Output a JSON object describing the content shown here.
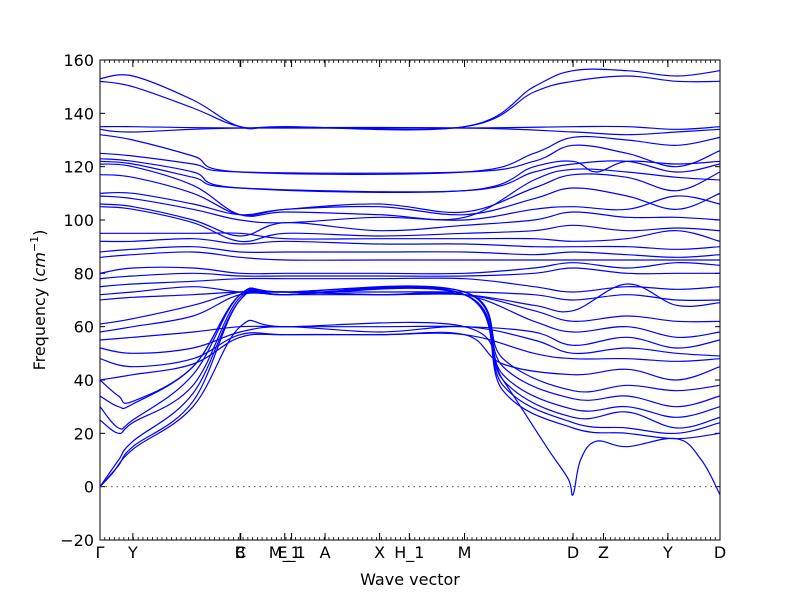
{
  "chart_data": {
    "type": "line",
    "title": "",
    "xlabel": "Wave vector",
    "ylabel": "Frequency",
    "ylabel_unit": "cm",
    "ylabel_unit_exp": "−1",
    "ylim": [
      -20,
      160
    ],
    "yticks": [
      -20,
      0,
      20,
      40,
      60,
      80,
      100,
      120,
      140,
      160
    ],
    "ytick_labels": [
      "−20",
      "0",
      "20",
      "40",
      "60",
      "80",
      "100",
      "120",
      "140",
      "160"
    ],
    "xlim": [
      0,
      1
    ],
    "high_symmetry_points": [
      {
        "label": "Γ",
        "x": 0.0
      },
      {
        "label": "Y",
        "x": 0.053
      },
      {
        "label": "B",
        "x": 0.226
      },
      {
        "label": "C",
        "x": 0.227
      },
      {
        "label": "M_1",
        "x": 0.298
      },
      {
        "label": "E_1",
        "x": 0.309
      },
      {
        "label": "A",
        "x": 0.363
      },
      {
        "label": "X",
        "x": 0.451
      },
      {
        "label": "H_1",
        "x": 0.499
      },
      {
        "label": "M",
        "x": 0.588
      },
      {
        "label": "D",
        "x": 0.763
      },
      {
        "label": "Z",
        "x": 0.812
      },
      {
        "label": "Y",
        "x": 0.916
      },
      {
        "label": "D",
        "x": 1.0
      }
    ],
    "bands": [
      {
        "x": [
          0,
          0.053,
          0.15,
          0.226,
          0.3,
          0.588,
          0.7,
          0.763,
          0.85,
          0.93,
          1.0
        ],
        "y": [
          153,
          154,
          145,
          135,
          135,
          135,
          150,
          156,
          156,
          154,
          156
        ]
      },
      {
        "x": [
          0,
          0.053,
          0.15,
          0.226,
          0.3,
          0.588,
          0.7,
          0.763,
          0.85,
          0.93,
          1.0
        ],
        "y": [
          152,
          150,
          142,
          135,
          135,
          135,
          148,
          152,
          154,
          152,
          152
        ]
      },
      {
        "x": [
          0,
          0.053,
          0.226,
          0.588,
          0.763,
          0.85,
          0.93,
          1.0
        ],
        "y": [
          135,
          135,
          134.5,
          134.5,
          135,
          135,
          134,
          135
        ]
      },
      {
        "x": [
          0,
          0.053,
          0.226,
          0.588,
          0.763,
          0.85,
          0.93,
          1.0
        ],
        "y": [
          134,
          133,
          134.5,
          134.5,
          133,
          132,
          133,
          134
        ]
      },
      {
        "x": [
          0,
          0.053,
          0.15,
          0.226,
          0.588,
          0.7,
          0.763,
          0.85,
          0.93,
          1.0
        ],
        "y": [
          132,
          130,
          124,
          118,
          118,
          125,
          131,
          130,
          128,
          131
        ]
      },
      {
        "x": [
          0,
          0.053,
          0.15,
          0.226,
          0.588,
          0.7,
          0.763,
          0.85,
          0.93,
          1.0
        ],
        "y": [
          125,
          124,
          121,
          118,
          118,
          122,
          128,
          125,
          120,
          126
        ]
      },
      {
        "x": [
          0,
          0.053,
          0.15,
          0.226,
          0.588,
          0.7,
          0.763,
          0.8,
          0.85,
          0.93,
          1.0
        ],
        "y": [
          123,
          122,
          118,
          112,
          111,
          120,
          122,
          118,
          122,
          121,
          122
        ]
      },
      {
        "x": [
          0,
          0.053,
          0.15,
          0.226,
          0.588,
          0.7,
          0.763,
          0.85,
          0.93,
          1.0
        ],
        "y": [
          122,
          121,
          116,
          112,
          111,
          118,
          121,
          122,
          118,
          121
        ]
      },
      {
        "x": [
          0,
          0.053,
          0.15,
          0.226,
          0.3,
          0.45,
          0.588,
          0.7,
          0.763,
          0.85,
          0.93,
          1.0
        ],
        "y": [
          121,
          120,
          113,
          102,
          103,
          102,
          101,
          115,
          119,
          118,
          116,
          115
        ]
      },
      {
        "x": [
          0,
          0.053,
          0.15,
          0.226,
          0.3,
          0.45,
          0.588,
          0.7,
          0.763,
          0.85,
          0.93,
          1.0
        ],
        "y": [
          117,
          116,
          110,
          102,
          104,
          106,
          103,
          112,
          117,
          116,
          111,
          118
        ]
      },
      {
        "x": [
          0,
          0.053,
          0.15,
          0.226,
          0.3,
          0.45,
          0.588,
          0.7,
          0.763,
          0.85,
          0.93,
          1.0
        ],
        "y": [
          110,
          110,
          106,
          102,
          104,
          105,
          102,
          108,
          112,
          109,
          104,
          110
        ]
      },
      {
        "x": [
          0,
          0.053,
          0.15,
          0.226,
          0.3,
          0.45,
          0.588,
          0.7,
          0.763,
          0.85,
          0.93,
          1.0
        ],
        "y": [
          109,
          108,
          104,
          100,
          99,
          101,
          100,
          104,
          105,
          104,
          109,
          106
        ]
      },
      {
        "x": [
          0,
          0.053,
          0.15,
          0.226,
          0.3,
          0.45,
          0.588,
          0.7,
          0.763,
          0.85,
          0.93,
          1.0
        ],
        "y": [
          106,
          105,
          100,
          94,
          99,
          96,
          98,
          100,
          103,
          101,
          101,
          100
        ]
      },
      {
        "x": [
          0,
          0.053,
          0.15,
          0.226,
          0.3,
          0.45,
          0.588,
          0.7,
          0.763,
          0.85,
          0.93,
          1.0
        ],
        "y": [
          105,
          104,
          99,
          92,
          95,
          94,
          95,
          96,
          98,
          96,
          97,
          96
        ]
      },
      {
        "x": [
          0,
          0.053,
          0.15,
          0.226,
          0.3,
          0.45,
          0.588,
          0.7,
          0.763,
          0.85,
          0.93,
          1.0
        ],
        "y": [
          95,
          95,
          95,
          95,
          93,
          93,
          93,
          93,
          92,
          93,
          96,
          92
        ]
      },
      {
        "x": [
          0,
          0.053,
          0.15,
          0.226,
          0.3,
          0.45,
          0.588,
          0.7,
          0.763,
          0.85,
          0.93,
          1.0
        ],
        "y": [
          92,
          92,
          93,
          91,
          92,
          91,
          91,
          90,
          90,
          90,
          89,
          90
        ]
      },
      {
        "x": [
          0,
          0.053,
          0.15,
          0.226,
          0.3,
          0.45,
          0.588,
          0.7,
          0.763,
          0.85,
          0.93,
          1.0
        ],
        "y": [
          88,
          89,
          90,
          88,
          88,
          88,
          88,
          87,
          88,
          87,
          86,
          87
        ]
      },
      {
        "x": [
          0,
          0.053,
          0.15,
          0.226,
          0.3,
          0.45,
          0.588,
          0.7,
          0.763,
          0.85,
          0.93,
          1.0
        ],
        "y": [
          86,
          87,
          88,
          86,
          85,
          85,
          85,
          85,
          85,
          85,
          85,
          85
        ]
      },
      {
        "x": [
          0,
          0.053,
          0.15,
          0.226,
          0.3,
          0.45,
          0.588,
          0.7,
          0.763,
          0.85,
          0.93,
          1.0
        ],
        "y": [
          80,
          82,
          82,
          80,
          80,
          80,
          80,
          82,
          84,
          82,
          84,
          83
        ]
      },
      {
        "x": [
          0,
          0.053,
          0.15,
          0.226,
          0.3,
          0.45,
          0.588,
          0.7,
          0.763,
          0.85,
          0.93,
          1.0
        ],
        "y": [
          78,
          79,
          80,
          79,
          79,
          79,
          79,
          80,
          82,
          80,
          80,
          80
        ]
      },
      {
        "x": [
          0,
          0.053,
          0.15,
          0.226,
          0.3,
          0.45,
          0.588,
          0.7,
          0.763,
          0.85,
          0.93,
          1.0
        ],
        "y": [
          75,
          76,
          77,
          78,
          78,
          78,
          78,
          75,
          73,
          75,
          74,
          75
        ]
      },
      {
        "x": [
          0,
          0.053,
          0.15,
          0.226,
          0.3,
          0.45,
          0.588,
          0.7,
          0.763,
          0.85,
          0.93,
          1.0
        ],
        "y": [
          72,
          73,
          75,
          73,
          73,
          73,
          73,
          72,
          70,
          72,
          70,
          70
        ]
      },
      {
        "x": [
          0,
          0.053,
          0.15,
          0.226,
          0.3,
          0.45,
          0.588,
          0.7,
          0.763,
          0.85,
          0.93,
          1.0
        ],
        "y": [
          70,
          71,
          72,
          73,
          73,
          72,
          72,
          68,
          66,
          76,
          68,
          69
        ]
      },
      {
        "x": [
          0,
          0.053,
          0.15,
          0.226,
          0.3,
          0.45,
          0.588,
          0.7,
          0.763,
          0.85,
          0.93,
          1.0
        ],
        "y": [
          61,
          63,
          68,
          73,
          73,
          72,
          72,
          66,
          62,
          64,
          62,
          62
        ]
      },
      {
        "x": [
          0,
          0.053,
          0.15,
          0.226,
          0.3,
          0.45,
          0.588,
          0.7,
          0.763,
          0.85,
          0.93,
          1.0
        ],
        "y": [
          58,
          60,
          64,
          72,
          72,
          72,
          72,
          62,
          58,
          60,
          56,
          58
        ]
      },
      {
        "x": [
          0,
          0.053,
          0.15,
          0.226,
          0.3,
          0.45,
          0.588,
          0.7,
          0.763,
          0.85,
          0.93,
          1.0
        ],
        "y": [
          55,
          56,
          58,
          60,
          60,
          60,
          60,
          58,
          53,
          56,
          52,
          55
        ]
      },
      {
        "x": [
          0,
          0.053,
          0.15,
          0.226,
          0.3,
          0.45,
          0.588,
          0.7,
          0.763,
          0.85,
          0.93,
          1.0
        ],
        "y": [
          52,
          50,
          52,
          58,
          60,
          58,
          60,
          55,
          50,
          52,
          50,
          49
        ]
      },
      {
        "x": [
          0,
          0.053,
          0.15,
          0.226,
          0.3,
          0.45,
          0.588,
          0.7,
          0.763,
          0.85,
          0.93,
          1.0
        ],
        "y": [
          48,
          45,
          48,
          57,
          57,
          57,
          57,
          50,
          48,
          48,
          47,
          48
        ]
      },
      {
        "x": [
          0,
          0.053,
          0.15,
          0.226,
          0.3,
          0.45,
          0.588,
          0.65,
          0.763,
          0.85,
          0.93,
          1.0
        ],
        "y": [
          40,
          42,
          46,
          56,
          57,
          57,
          57,
          46,
          42,
          44,
          40,
          45
        ]
      },
      {
        "x": [
          0,
          0.03,
          0.053,
          0.15,
          0.226,
          0.3,
          0.588,
          0.65,
          0.763,
          0.85,
          0.93,
          1.0
        ],
        "y": [
          40,
          34,
          32,
          45,
          72,
          73,
          73,
          48,
          36,
          38,
          36,
          38
        ]
      },
      {
        "x": [
          0,
          0.03,
          0.053,
          0.15,
          0.226,
          0.3,
          0.588,
          0.65,
          0.763,
          0.85,
          0.93,
          1.0
        ],
        "y": [
          34,
          30,
          31,
          45,
          72,
          73,
          73,
          45,
          33,
          34,
          30,
          34
        ]
      },
      {
        "x": [
          0,
          0.03,
          0.053,
          0.15,
          0.226,
          0.3,
          0.588,
          0.65,
          0.763,
          0.85,
          0.93,
          1.0
        ],
        "y": [
          30,
          22,
          25,
          42,
          72,
          72,
          72,
          42,
          29,
          30,
          26,
          30
        ]
      },
      {
        "x": [
          0,
          0.03,
          0.053,
          0.15,
          0.226,
          0.3,
          0.588,
          0.65,
          0.763,
          0.85,
          0.93,
          1.0
        ],
        "y": [
          25,
          20,
          24,
          38,
          71,
          72,
          72,
          40,
          26,
          28,
          22,
          26
        ]
      },
      {
        "x": [
          0,
          0.03,
          0.053,
          0.15,
          0.226,
          0.3,
          0.588,
          0.65,
          0.763,
          0.85,
          0.93,
          1.0
        ],
        "y": [
          0,
          10,
          17,
          35,
          70,
          72,
          72,
          38,
          24,
          22,
          20,
          24
        ]
      },
      {
        "x": [
          0,
          0.03,
          0.053,
          0.15,
          0.226,
          0.3,
          0.588,
          0.65,
          0.763,
          0.85,
          0.93,
          1.0
        ],
        "y": [
          0,
          8,
          15,
          32,
          70,
          72,
          72,
          36,
          22,
          20,
          18,
          20
        ]
      },
      {
        "x": [
          0,
          0.02,
          0.053,
          0.15,
          0.226,
          0.3,
          0.588,
          0.65,
          0.72,
          0.755,
          0.763,
          0.775,
          0.8,
          0.85,
          0.93,
          0.97,
          1.0
        ],
        "y": [
          0,
          5,
          14,
          30,
          60,
          60,
          60,
          40,
          15,
          3,
          -3,
          10,
          17,
          15,
          18,
          10,
          -3
        ]
      }
    ]
  }
}
